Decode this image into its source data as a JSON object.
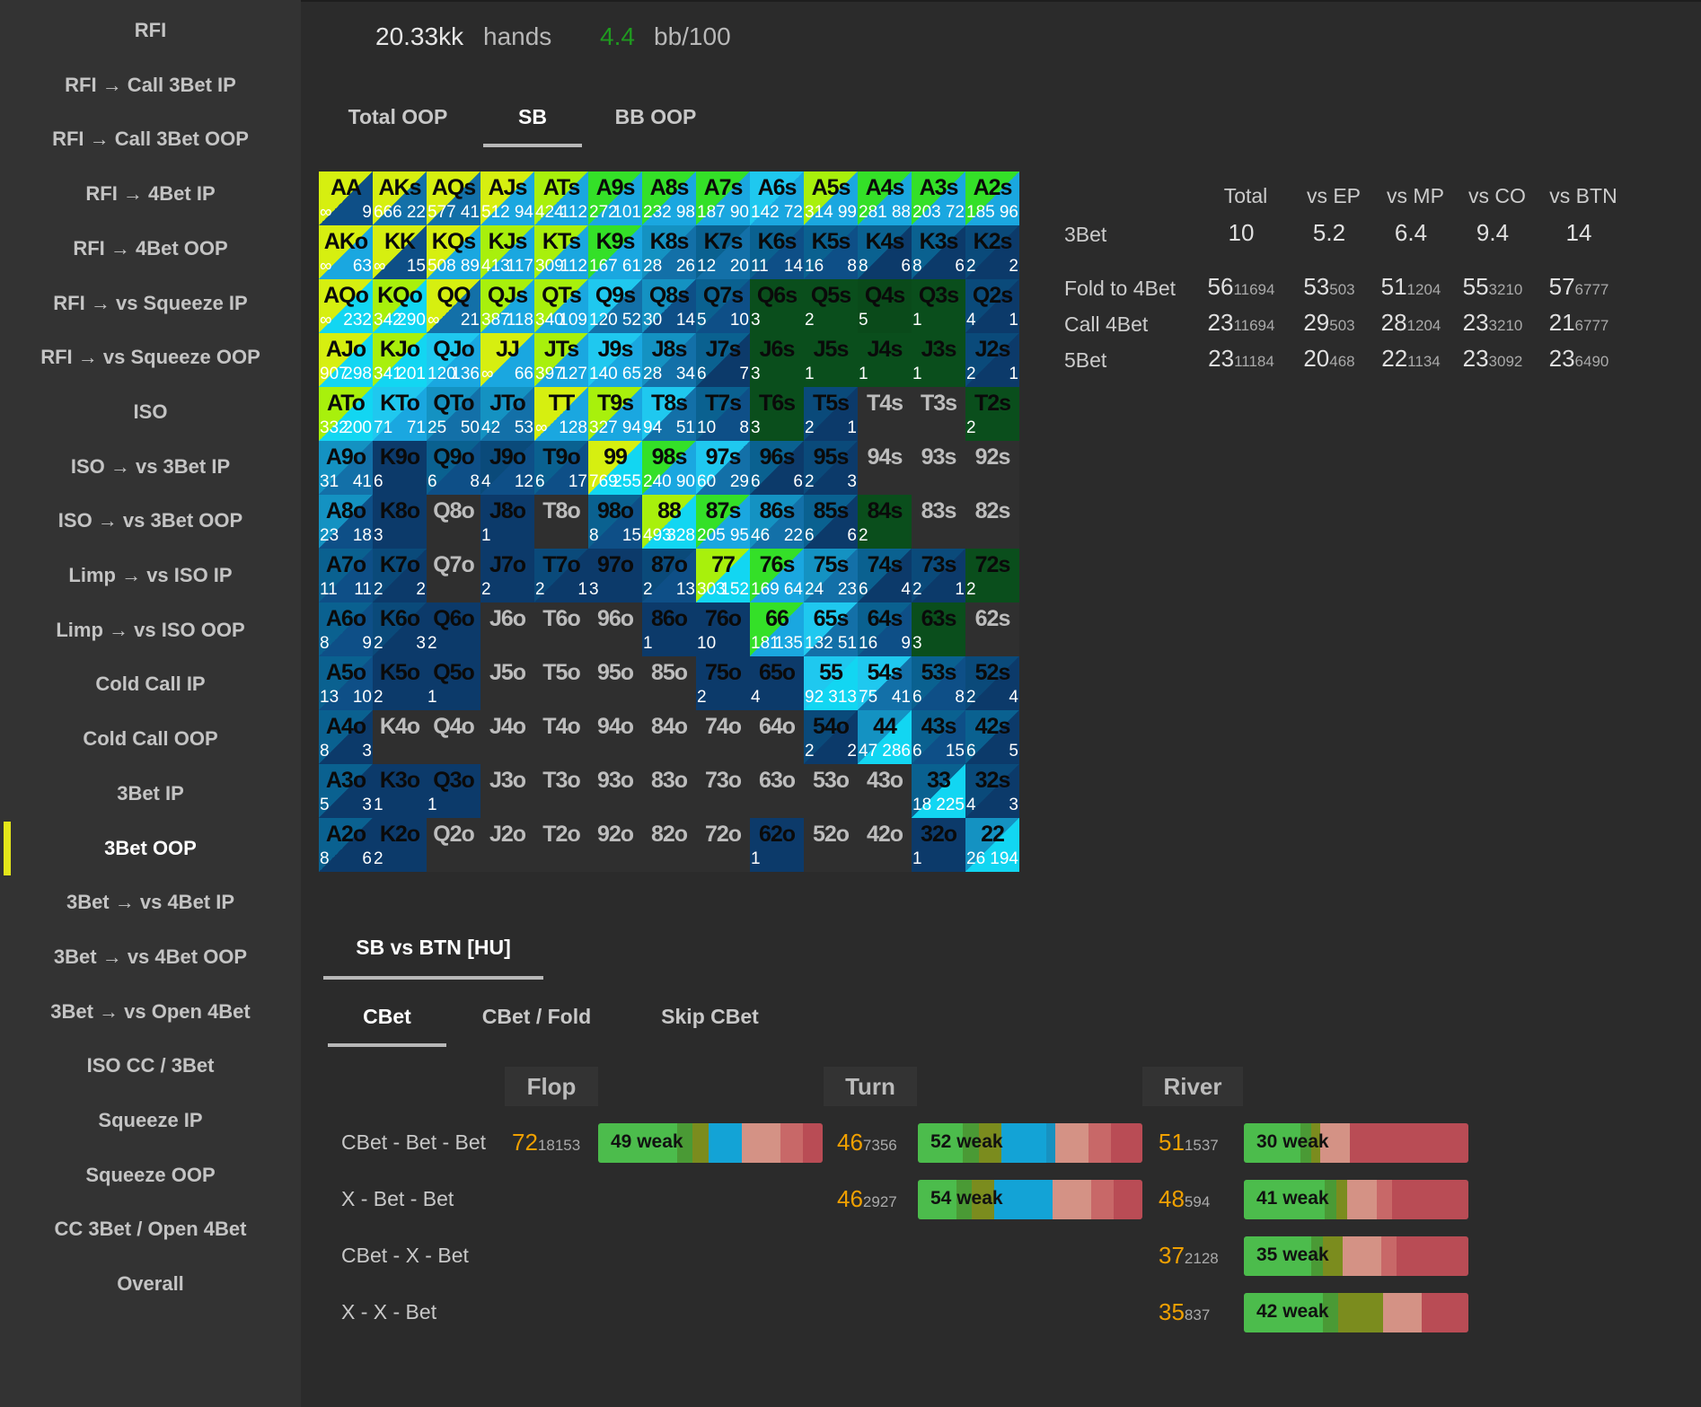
{
  "sidebar": {
    "items": [
      "RFI",
      "RFI → Call 3Bet IP",
      "RFI → Call 3Bet OOP",
      "RFI → 4Bet IP",
      "RFI → 4Bet OOP",
      "RFI → vs Squeeze IP",
      "RFI → vs Squeeze OOP",
      "ISO",
      "ISO → vs 3Bet IP",
      "ISO → vs 3Bet OOP",
      "Limp → vs ISO IP",
      "Limp → vs ISO OOP",
      "Cold Call IP",
      "Cold Call OOP",
      "3Bet IP",
      "3Bet OOP",
      "3Bet → vs 4Bet IP",
      "3Bet → vs 4Bet OOP",
      "3Bet → vs Open 4Bet",
      "ISO CC / 3Bet",
      "Squeeze IP",
      "Squeeze OOP",
      "CC 3Bet / Open 4Bet",
      "Overall"
    ],
    "active_index": 15,
    "indicator_color": "#e4e61a"
  },
  "header": {
    "hands_value": "20.33kk",
    "hands_label": "hands",
    "winrate_value": "4.4",
    "winrate_color": "#1f9a1f",
    "winrate_label": "bb/100"
  },
  "position_tabs": {
    "items": [
      "Total OOP",
      "SB",
      "BB OOP"
    ],
    "active_index": 1
  },
  "grid": {
    "cells": [
      [
        "AA",
        "∞",
        "9"
      ],
      [
        "AKs",
        "666",
        "22"
      ],
      [
        "AQs",
        "577",
        "41"
      ],
      [
        "AJs",
        "512",
        "94"
      ],
      [
        "ATs",
        "424",
        "112"
      ],
      [
        "A9s",
        "272",
        "101"
      ],
      [
        "A8s",
        "232",
        "98"
      ],
      [
        "A7s",
        "187",
        "90"
      ],
      [
        "A6s",
        "142",
        "72"
      ],
      [
        "A5s",
        "314",
        "99"
      ],
      [
        "A4s",
        "281",
        "88"
      ],
      [
        "A3s",
        "203",
        "72"
      ],
      [
        "A2s",
        "185",
        "96"
      ],
      [
        "AKo",
        "∞",
        "63"
      ],
      [
        "KK",
        "∞",
        "15"
      ],
      [
        "KQs",
        "508",
        "89"
      ],
      [
        "KJs",
        "413",
        "117"
      ],
      [
        "KTs",
        "309",
        "112"
      ],
      [
        "K9s",
        "167",
        "61"
      ],
      [
        "K8s",
        "28",
        "26"
      ],
      [
        "K7s",
        "12",
        "20"
      ],
      [
        "K6s",
        "11",
        "14"
      ],
      [
        "K5s",
        "16",
        "8"
      ],
      [
        "K4s",
        "8",
        "6"
      ],
      [
        "K3s",
        "8",
        "6"
      ],
      [
        "K2s",
        "2",
        "2"
      ],
      [
        "AQo",
        "∞",
        "232"
      ],
      [
        "KQo",
        "342",
        "290"
      ],
      [
        "QQ",
        "∞",
        "21"
      ],
      [
        "QJs",
        "387",
        "118"
      ],
      [
        "QTs",
        "340",
        "109"
      ],
      [
        "Q9s",
        "120",
        "52"
      ],
      [
        "Q8s",
        "30",
        "14"
      ],
      [
        "Q7s",
        "5",
        "10"
      ],
      [
        "Q6s",
        "3",
        ""
      ],
      [
        "Q5s",
        "2",
        ""
      ],
      [
        "Q4s",
        "5",
        ""
      ],
      [
        "Q3s",
        "1",
        ""
      ],
      [
        "Q2s",
        "4",
        "1"
      ],
      [
        "AJo",
        "907",
        "298"
      ],
      [
        "KJo",
        "341",
        "201"
      ],
      [
        "QJo",
        "120",
        "136"
      ],
      [
        "JJ",
        "∞",
        "66"
      ],
      [
        "JTs",
        "397",
        "127"
      ],
      [
        "J9s",
        "140",
        "65"
      ],
      [
        "J8s",
        "28",
        "34"
      ],
      [
        "J7s",
        "6",
        "7"
      ],
      [
        "J6s",
        "3",
        ""
      ],
      [
        "J5s",
        "1",
        ""
      ],
      [
        "J4s",
        "1",
        ""
      ],
      [
        "J3s",
        "1",
        ""
      ],
      [
        "J2s",
        "2",
        "1"
      ],
      [
        "ATo",
        "332",
        "200"
      ],
      [
        "KTo",
        "71",
        "71"
      ],
      [
        "QTo",
        "25",
        "50"
      ],
      [
        "JTo",
        "42",
        "53"
      ],
      [
        "TT",
        "∞",
        "128"
      ],
      [
        "T9s",
        "327",
        "94"
      ],
      [
        "T8s",
        "94",
        "51"
      ],
      [
        "T7s",
        "10",
        "8"
      ],
      [
        "T6s",
        "3",
        ""
      ],
      [
        "T5s",
        "2",
        "1"
      ],
      [
        "T4s",
        "",
        ""
      ],
      [
        "T3s",
        "",
        ""
      ],
      [
        "T2s",
        "2",
        ""
      ],
      [
        "A9o",
        "31",
        "41"
      ],
      [
        "K9o",
        "6",
        ""
      ],
      [
        "Q9o",
        "6",
        "8"
      ],
      [
        "J9o",
        "4",
        "12"
      ],
      [
        "T9o",
        "6",
        "17"
      ],
      [
        "99",
        "769",
        "255"
      ],
      [
        "98s",
        "240",
        "90"
      ],
      [
        "97s",
        "60",
        "29"
      ],
      [
        "96s",
        "6",
        "6"
      ],
      [
        "95s",
        "2",
        "3"
      ],
      [
        "94s",
        "",
        ""
      ],
      [
        "93s",
        "",
        ""
      ],
      [
        "92s",
        "",
        ""
      ],
      [
        "A8o",
        "23",
        "18"
      ],
      [
        "K8o",
        "3",
        ""
      ],
      [
        "Q8o",
        "",
        ""
      ],
      [
        "J8o",
        "1",
        ""
      ],
      [
        "T8o",
        "",
        ""
      ],
      [
        "98o",
        "8",
        "15"
      ],
      [
        "88",
        "493",
        "328"
      ],
      [
        "87s",
        "205",
        "95"
      ],
      [
        "86s",
        "46",
        "22"
      ],
      [
        "85s",
        "6",
        "6"
      ],
      [
        "84s",
        "2",
        ""
      ],
      [
        "83s",
        "",
        ""
      ],
      [
        "82s",
        "",
        ""
      ],
      [
        "A7o",
        "11",
        "11"
      ],
      [
        "K7o",
        "2",
        "2"
      ],
      [
        "Q7o",
        "",
        ""
      ],
      [
        "J7o",
        "2",
        ""
      ],
      [
        "T7o",
        "2",
        "1"
      ],
      [
        "97o",
        "3",
        ""
      ],
      [
        "87o",
        "2",
        "13"
      ],
      [
        "77",
        "303",
        "152"
      ],
      [
        "76s",
        "169",
        "64"
      ],
      [
        "75s",
        "24",
        "23"
      ],
      [
        "74s",
        "6",
        "4"
      ],
      [
        "73s",
        "2",
        "1"
      ],
      [
        "72s",
        "2",
        ""
      ],
      [
        "A6o",
        "8",
        "9"
      ],
      [
        "K6o",
        "2",
        "3"
      ],
      [
        "Q6o",
        "2",
        ""
      ],
      [
        "J6o",
        "",
        ""
      ],
      [
        "T6o",
        "",
        ""
      ],
      [
        "96o",
        "",
        ""
      ],
      [
        "86o",
        "1",
        ""
      ],
      [
        "76o",
        "10",
        ""
      ],
      [
        "66",
        "181",
        "135"
      ],
      [
        "65s",
        "132",
        "51"
      ],
      [
        "64s",
        "16",
        "9"
      ],
      [
        "63s",
        "3",
        ""
      ],
      [
        "62s",
        "",
        ""
      ],
      [
        "A5o",
        "13",
        "10"
      ],
      [
        "K5o",
        "2",
        ""
      ],
      [
        "Q5o",
        "1",
        ""
      ],
      [
        "J5o",
        "",
        ""
      ],
      [
        "T5o",
        "",
        ""
      ],
      [
        "95o",
        "",
        ""
      ],
      [
        "85o",
        "",
        ""
      ],
      [
        "75o",
        "2",
        ""
      ],
      [
        "65o",
        "4",
        ""
      ],
      [
        "55",
        "92",
        "313"
      ],
      [
        "54s",
        "75",
        "41"
      ],
      [
        "53s",
        "6",
        "8"
      ],
      [
        "52s",
        "2",
        "4"
      ],
      [
        "A4o",
        "8",
        "3"
      ],
      [
        "K4o",
        "",
        ""
      ],
      [
        "Q4o",
        "",
        ""
      ],
      [
        "J4o",
        "",
        ""
      ],
      [
        "T4o",
        "",
        ""
      ],
      [
        "94o",
        "",
        ""
      ],
      [
        "84o",
        "",
        ""
      ],
      [
        "74o",
        "",
        ""
      ],
      [
        "64o",
        "",
        ""
      ],
      [
        "54o",
        "2",
        "2"
      ],
      [
        "44",
        "47",
        "286"
      ],
      [
        "43s",
        "6",
        "15"
      ],
      [
        "42s",
        "6",
        "5"
      ],
      [
        "A3o",
        "5",
        "3"
      ],
      [
        "K3o",
        "1",
        ""
      ],
      [
        "Q3o",
        "1",
        ""
      ],
      [
        "J3o",
        "",
        ""
      ],
      [
        "T3o",
        "",
        ""
      ],
      [
        "93o",
        "",
        ""
      ],
      [
        "83o",
        "",
        ""
      ],
      [
        "73o",
        "",
        ""
      ],
      [
        "63o",
        "",
        ""
      ],
      [
        "53o",
        "",
        ""
      ],
      [
        "43o",
        "",
        ""
      ],
      [
        "33",
        "18",
        "225"
      ],
      [
        "32s",
        "4",
        "3"
      ],
      [
        "A2o",
        "8",
        "6"
      ],
      [
        "K2o",
        "2",
        ""
      ],
      [
        "Q2o",
        "",
        ""
      ],
      [
        "J2o",
        "",
        ""
      ],
      [
        "T2o",
        "",
        ""
      ],
      [
        "92o",
        "",
        ""
      ],
      [
        "82o",
        "",
        ""
      ],
      [
        "72o",
        "",
        ""
      ],
      [
        "62o",
        "1",
        ""
      ],
      [
        "52o",
        "",
        ""
      ],
      [
        "42o",
        "",
        ""
      ],
      [
        "32o",
        "1",
        ""
      ],
      [
        "22",
        "26",
        "194"
      ]
    ]
  },
  "stats": {
    "columns": [
      "Total",
      "vs EP",
      "vs MP",
      "vs CO",
      "vs BTN"
    ],
    "rows": [
      {
        "label": "3Bet",
        "values": [
          [
            "10",
            ""
          ],
          [
            "5.2",
            ""
          ],
          [
            "6.4",
            ""
          ],
          [
            "9.4",
            ""
          ],
          [
            "14",
            ""
          ]
        ]
      },
      {
        "label": "Fold to 4Bet",
        "values": [
          [
            "56",
            "11694"
          ],
          [
            "53",
            "503"
          ],
          [
            "51",
            "1204"
          ],
          [
            "55",
            "3210"
          ],
          [
            "57",
            "6777"
          ]
        ]
      },
      {
        "label": "Call 4Bet",
        "values": [
          [
            "23",
            "11694"
          ],
          [
            "29",
            "503"
          ],
          [
            "28",
            "1204"
          ],
          [
            "23",
            "3210"
          ],
          [
            "21",
            "6777"
          ]
        ]
      },
      {
        "label": "5Bet",
        "values": [
          [
            "23",
            "11184"
          ],
          [
            "20",
            "468"
          ],
          [
            "22",
            "1134"
          ],
          [
            "23",
            "3092"
          ],
          [
            "23",
            "6490"
          ]
        ]
      }
    ]
  },
  "matchup_tab": "SB vs BTN [HU]",
  "cbet_tabs": {
    "items": [
      "CBet",
      "CBet / Fold",
      "Skip CBet"
    ],
    "active_index": 0
  },
  "streets": [
    "Flop",
    "Turn",
    "River"
  ],
  "cbet_rows": [
    {
      "label": "CBet - Bet - Bet",
      "flop": {
        "pct": "72",
        "n": "18153",
        "bar": "49 weak",
        "segs": [
          [
            "#4cbc4c",
            35
          ],
          [
            "#4a9a35",
            7
          ],
          [
            "#7b8c1e",
            7
          ],
          [
            "#13a3d6",
            15
          ],
          [
            "#d49285",
            17
          ],
          [
            "#c86868",
            10
          ],
          [
            "#b94c55",
            9
          ]
        ]
      },
      "turn": {
        "pct": "46",
        "n": "7356",
        "bar": "52 weak",
        "segs": [
          [
            "#4cbc4c",
            20
          ],
          [
            "#4a9a35",
            7
          ],
          [
            "#7b8c1e",
            10
          ],
          [
            "#13a3d6",
            20
          ],
          [
            "#1791c0",
            4
          ],
          [
            "#d49285",
            15
          ],
          [
            "#c86868",
            10
          ],
          [
            "#b94c55",
            14
          ]
        ]
      },
      "river": {
        "pct": "51",
        "n": "1537",
        "bar": "30 weak",
        "segs": [
          [
            "#4cbc4c",
            25
          ],
          [
            "#4a9a35",
            5
          ],
          [
            "#7b8c1e",
            4
          ],
          [
            "#d49285",
            13
          ],
          [
            "#b94c55",
            53
          ]
        ]
      }
    },
    {
      "label": "X - Bet - Bet",
      "turn": {
        "pct": "46",
        "n": "2927",
        "bar": "54 weak",
        "segs": [
          [
            "#4cbc4c",
            17
          ],
          [
            "#4a9a35",
            7
          ],
          [
            "#7b8c1e",
            10
          ],
          [
            "#13a3d6",
            26
          ],
          [
            "#d49285",
            17
          ],
          [
            "#c86868",
            10
          ],
          [
            "#b94c55",
            13
          ]
        ]
      },
      "river": {
        "pct": "48",
        "n": "594",
        "bar": "41 weak",
        "segs": [
          [
            "#4cbc4c",
            36
          ],
          [
            "#4a9a35",
            5
          ],
          [
            "#7b8c1e",
            5
          ],
          [
            "#d49285",
            13
          ],
          [
            "#c86868",
            7
          ],
          [
            "#b94c55",
            34
          ]
        ]
      }
    },
    {
      "label": "CBet - X - Bet",
      "river": {
        "pct": "37",
        "n": "2128",
        "bar": "35 weak",
        "segs": [
          [
            "#4cbc4c",
            30
          ],
          [
            "#4a9a35",
            5
          ],
          [
            "#7b8c1e",
            9
          ],
          [
            "#d49285",
            17
          ],
          [
            "#c86868",
            7
          ],
          [
            "#b94c55",
            32
          ]
        ]
      }
    },
    {
      "label": "X - X - Bet",
      "river": {
        "pct": "35",
        "n": "837",
        "bar": "42 weak",
        "segs": [
          [
            "#4cbc4c",
            35
          ],
          [
            "#4a9a35",
            7
          ],
          [
            "#7b8c1e",
            20
          ],
          [
            "#d49285",
            17
          ],
          [
            "#b94c55",
            21
          ]
        ]
      }
    }
  ]
}
